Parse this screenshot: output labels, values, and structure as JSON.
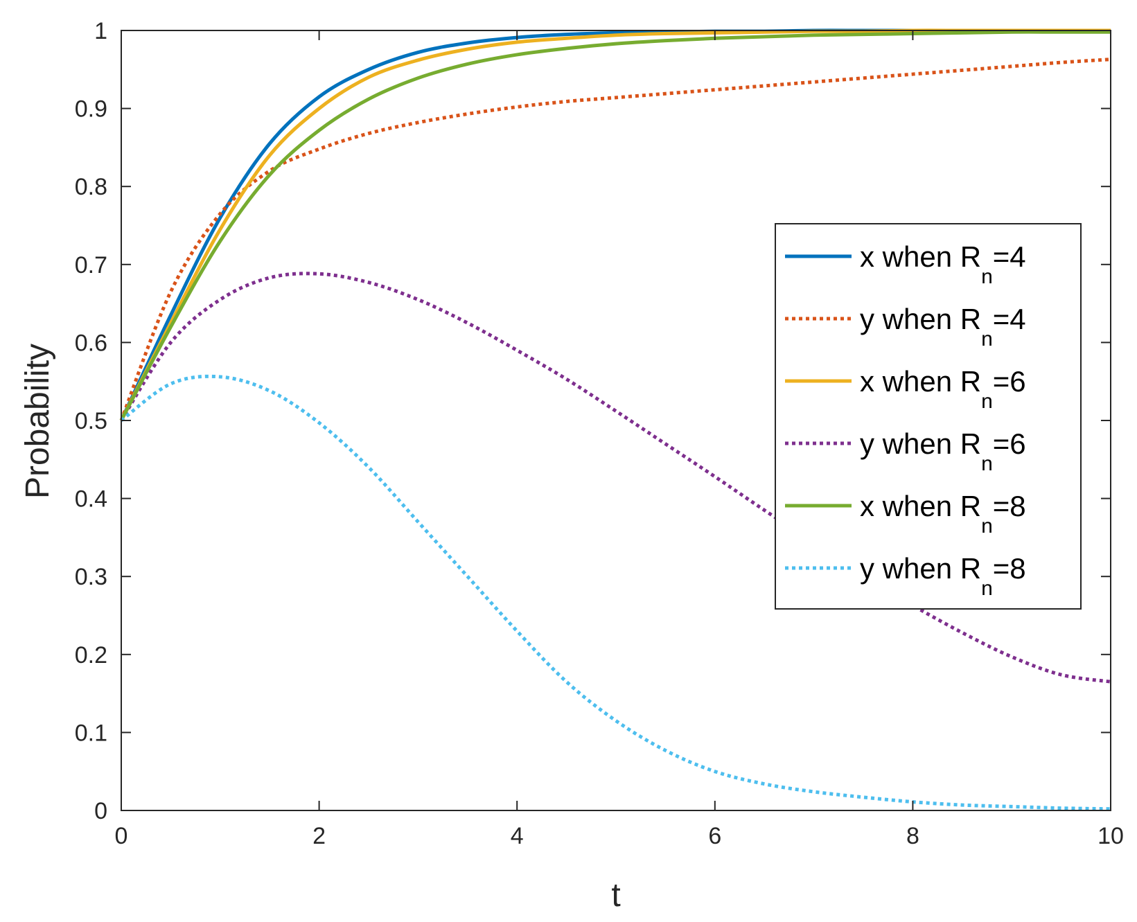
{
  "chart_data": {
    "type": "line",
    "title": "",
    "xlabel": "t",
    "ylabel": "Probability",
    "xlim": [
      0,
      10
    ],
    "ylim": [
      0,
      1
    ],
    "xticks": [
      0,
      2,
      4,
      6,
      8,
      10
    ],
    "yticks": [
      0,
      0.1,
      0.2,
      0.3,
      0.4,
      0.5,
      0.6,
      0.7,
      0.8,
      0.9,
      1
    ],
    "xtick_labels": [
      "0",
      "2",
      "4",
      "6",
      "8",
      "10"
    ],
    "ytick_labels": [
      "0",
      "0.1",
      "0.2",
      "0.3",
      "0.4",
      "0.5",
      "0.6",
      "0.7",
      "0.8",
      "0.9",
      "1"
    ],
    "grid": false,
    "box": true,
    "legend_position": "right",
    "x": [
      0,
      0.5,
      1,
      1.5,
      2,
      2.5,
      3,
      3.5,
      4,
      4.5,
      5,
      5.5,
      6,
      6.5,
      7,
      7.5,
      8,
      8.5,
      9,
      9.5,
      10
    ],
    "series": [
      {
        "id": "x4",
        "label": {
          "pre": "x when R",
          "sub": "n",
          "post": "=4"
        },
        "color": "#0072BD",
        "dash": "solid",
        "values": [
          0.5,
          0.635,
          0.76,
          0.855,
          0.915,
          0.95,
          0.972,
          0.984,
          0.991,
          0.995,
          0.997,
          0.998,
          0.999,
          0.999,
          1.0,
          1.0,
          1.0,
          1.0,
          1.0,
          1.0,
          1.0
        ]
      },
      {
        "id": "y4",
        "label": {
          "pre": "y when R",
          "sub": "n",
          "post": "=4"
        },
        "color": "#D95319",
        "dash": "dotted",
        "values": [
          0.5,
          0.665,
          0.765,
          0.82,
          0.848,
          0.868,
          0.882,
          0.893,
          0.902,
          0.909,
          0.914,
          0.919,
          0.924,
          0.929,
          0.934,
          0.939,
          0.944,
          0.949,
          0.954,
          0.959,
          0.963
        ]
      },
      {
        "id": "x6",
        "label": {
          "pre": "x when R",
          "sub": "n",
          "post": "=6"
        },
        "color": "#EDB120",
        "dash": "solid",
        "values": [
          0.5,
          0.625,
          0.745,
          0.84,
          0.9,
          0.94,
          0.962,
          0.976,
          0.985,
          0.99,
          0.994,
          0.996,
          0.997,
          0.998,
          0.999,
          0.999,
          1.0,
          1.0,
          1.0,
          1.0,
          1.0
        ]
      },
      {
        "id": "y6",
        "label": {
          "pre": "y when R",
          "sub": "n",
          "post": "=6"
        },
        "color": "#7E2F8E",
        "dash": "dotted",
        "values": [
          0.5,
          0.6,
          0.655,
          0.683,
          0.688,
          0.677,
          0.655,
          0.625,
          0.59,
          0.553,
          0.512,
          0.47,
          0.428,
          0.385,
          0.343,
          0.302,
          0.263,
          0.228,
          0.197,
          0.174,
          0.165
        ]
      },
      {
        "id": "x8",
        "label": {
          "pre": "x when R",
          "sub": "n",
          "post": "=8"
        },
        "color": "#77AC30",
        "dash": "solid",
        "values": [
          0.5,
          0.62,
          0.73,
          0.815,
          0.872,
          0.912,
          0.939,
          0.957,
          0.969,
          0.977,
          0.983,
          0.987,
          0.99,
          0.992,
          0.994,
          0.995,
          0.996,
          0.997,
          0.998,
          0.998,
          0.998
        ]
      },
      {
        "id": "y8",
        "label": {
          "pre": "y when R",
          "sub": "n",
          "post": "=8"
        },
        "color": "#4DBEEE",
        "dash": "dotted",
        "values": [
          0.5,
          0.547,
          0.556,
          0.538,
          0.497,
          0.44,
          0.37,
          0.3,
          0.23,
          0.165,
          0.115,
          0.077,
          0.05,
          0.034,
          0.024,
          0.017,
          0.011,
          0.007,
          0.005,
          0.003,
          0.002
        ]
      }
    ]
  }
}
